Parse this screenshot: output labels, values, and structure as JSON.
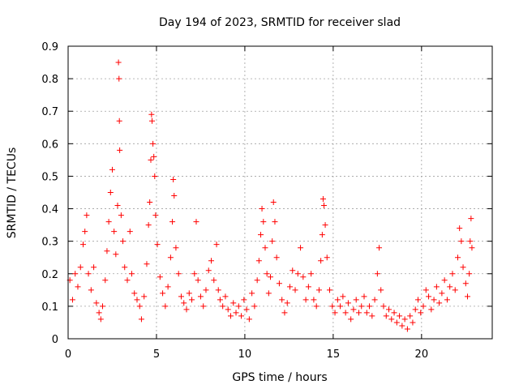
{
  "chart_data": {
    "type": "scatter",
    "title": "Day 194 of 2023, SRMTID for receiver slad",
    "xlabel": "GPS time / hours",
    "ylabel": "SRMTID / TECUs",
    "xlim": [
      0,
      24
    ],
    "ylim": [
      0,
      0.9
    ],
    "xticks": [
      0,
      5,
      10,
      15,
      20
    ],
    "xtick_labels": [
      "0",
      "5",
      "10",
      "15",
      "20"
    ],
    "yticks": [
      0,
      0.1,
      0.2,
      0.3,
      0.4,
      0.5,
      0.6,
      0.7,
      0.8,
      0.9
    ],
    "ytick_labels": [
      "0",
      "0.1",
      "0.2",
      "0.3",
      "0.4",
      "0.5",
      "0.6",
      "0.7",
      "0.8",
      "0.9"
    ],
    "grid": true,
    "marker": "+",
    "marker_color": "#ff0000",
    "series": [
      {
        "name": "SRMTID",
        "points": [
          [
            0.1,
            0.18
          ],
          [
            0.25,
            0.12
          ],
          [
            0.4,
            0.2
          ],
          [
            0.55,
            0.16
          ],
          [
            0.7,
            0.22
          ],
          [
            0.85,
            0.29
          ],
          [
            0.95,
            0.33
          ],
          [
            1.05,
            0.38
          ],
          [
            1.15,
            0.2
          ],
          [
            1.3,
            0.15
          ],
          [
            1.45,
            0.22
          ],
          [
            1.6,
            0.11
          ],
          [
            1.75,
            0.08
          ],
          [
            1.85,
            0.06
          ],
          [
            1.95,
            0.1
          ],
          [
            2.1,
            0.18
          ],
          [
            2.2,
            0.27
          ],
          [
            2.3,
            0.36
          ],
          [
            2.4,
            0.45
          ],
          [
            2.5,
            0.52
          ],
          [
            2.6,
            0.33
          ],
          [
            2.7,
            0.26
          ],
          [
            2.8,
            0.41
          ],
          [
            2.85,
            0.85
          ],
          [
            2.88,
            0.8
          ],
          [
            2.9,
            0.67
          ],
          [
            2.92,
            0.58
          ],
          [
            3.0,
            0.38
          ],
          [
            3.1,
            0.3
          ],
          [
            3.2,
            0.22
          ],
          [
            3.35,
            0.18
          ],
          [
            3.5,
            0.33
          ],
          [
            3.6,
            0.2
          ],
          [
            3.75,
            0.14
          ],
          [
            3.9,
            0.12
          ],
          [
            4.05,
            0.1
          ],
          [
            4.15,
            0.06
          ],
          [
            4.3,
            0.13
          ],
          [
            4.45,
            0.23
          ],
          [
            4.55,
            0.35
          ],
          [
            4.62,
            0.42
          ],
          [
            4.68,
            0.55
          ],
          [
            4.72,
            0.69
          ],
          [
            4.75,
            0.67
          ],
          [
            4.8,
            0.6
          ],
          [
            4.85,
            0.56
          ],
          [
            4.9,
            0.5
          ],
          [
            4.95,
            0.38
          ],
          [
            5.05,
            0.29
          ],
          [
            5.2,
            0.19
          ],
          [
            5.35,
            0.14
          ],
          [
            5.5,
            0.1
          ],
          [
            5.65,
            0.16
          ],
          [
            5.8,
            0.25
          ],
          [
            5.9,
            0.36
          ],
          [
            5.95,
            0.49
          ],
          [
            6.0,
            0.44
          ],
          [
            6.1,
            0.28
          ],
          [
            6.25,
            0.2
          ],
          [
            6.4,
            0.13
          ],
          [
            6.55,
            0.11
          ],
          [
            6.7,
            0.09
          ],
          [
            6.85,
            0.14
          ],
          [
            7.0,
            0.12
          ],
          [
            7.15,
            0.2
          ],
          [
            7.25,
            0.36
          ],
          [
            7.35,
            0.18
          ],
          [
            7.5,
            0.13
          ],
          [
            7.65,
            0.1
          ],
          [
            7.8,
            0.15
          ],
          [
            7.95,
            0.21
          ],
          [
            8.1,
            0.24
          ],
          [
            8.25,
            0.18
          ],
          [
            8.4,
            0.29
          ],
          [
            8.5,
            0.15
          ],
          [
            8.6,
            0.12
          ],
          [
            8.75,
            0.1
          ],
          [
            8.9,
            0.13
          ],
          [
            9.05,
            0.09
          ],
          [
            9.2,
            0.07
          ],
          [
            9.35,
            0.11
          ],
          [
            9.5,
            0.08
          ],
          [
            9.65,
            0.1
          ],
          [
            9.8,
            0.07
          ],
          [
            9.95,
            0.12
          ],
          [
            10.1,
            0.09
          ],
          [
            10.25,
            0.06
          ],
          [
            10.4,
            0.14
          ],
          [
            10.55,
            0.1
          ],
          [
            10.7,
            0.18
          ],
          [
            10.8,
            0.24
          ],
          [
            10.9,
            0.32
          ],
          [
            10.97,
            0.4
          ],
          [
            11.05,
            0.36
          ],
          [
            11.15,
            0.28
          ],
          [
            11.25,
            0.2
          ],
          [
            11.35,
            0.14
          ],
          [
            11.45,
            0.19
          ],
          [
            11.55,
            0.3
          ],
          [
            11.62,
            0.42
          ],
          [
            11.7,
            0.36
          ],
          [
            11.8,
            0.25
          ],
          [
            11.95,
            0.17
          ],
          [
            12.1,
            0.12
          ],
          [
            12.25,
            0.08
          ],
          [
            12.4,
            0.11
          ],
          [
            12.55,
            0.16
          ],
          [
            12.7,
            0.21
          ],
          [
            12.85,
            0.15
          ],
          [
            13.0,
            0.2
          ],
          [
            13.15,
            0.28
          ],
          [
            13.3,
            0.19
          ],
          [
            13.45,
            0.12
          ],
          [
            13.6,
            0.16
          ],
          [
            13.75,
            0.2
          ],
          [
            13.9,
            0.12
          ],
          [
            14.05,
            0.1
          ],
          [
            14.2,
            0.15
          ],
          [
            14.3,
            0.24
          ],
          [
            14.38,
            0.32
          ],
          [
            14.43,
            0.43
          ],
          [
            14.48,
            0.41
          ],
          [
            14.55,
            0.35
          ],
          [
            14.65,
            0.25
          ],
          [
            14.8,
            0.15
          ],
          [
            14.95,
            0.1
          ],
          [
            15.1,
            0.08
          ],
          [
            15.25,
            0.12
          ],
          [
            15.4,
            0.1
          ],
          [
            15.55,
            0.13
          ],
          [
            15.7,
            0.08
          ],
          [
            15.85,
            0.11
          ],
          [
            16.0,
            0.06
          ],
          [
            16.15,
            0.09
          ],
          [
            16.3,
            0.12
          ],
          [
            16.45,
            0.08
          ],
          [
            16.6,
            0.1
          ],
          [
            16.75,
            0.13
          ],
          [
            16.9,
            0.08
          ],
          [
            17.05,
            0.1
          ],
          [
            17.2,
            0.07
          ],
          [
            17.35,
            0.12
          ],
          [
            17.5,
            0.2
          ],
          [
            17.6,
            0.28
          ],
          [
            17.7,
            0.15
          ],
          [
            17.85,
            0.1
          ],
          [
            18.0,
            0.07
          ],
          [
            18.15,
            0.09
          ],
          [
            18.3,
            0.06
          ],
          [
            18.45,
            0.08
          ],
          [
            18.6,
            0.05
          ],
          [
            18.75,
            0.07
          ],
          [
            18.9,
            0.04
          ],
          [
            19.05,
            0.06
          ],
          [
            19.2,
            0.03
          ],
          [
            19.35,
            0.07
          ],
          [
            19.5,
            0.05
          ],
          [
            19.65,
            0.09
          ],
          [
            19.8,
            0.12
          ],
          [
            19.95,
            0.08
          ],
          [
            20.1,
            0.1
          ],
          [
            20.25,
            0.15
          ],
          [
            20.4,
            0.13
          ],
          [
            20.55,
            0.09
          ],
          [
            20.7,
            0.12
          ],
          [
            20.85,
            0.16
          ],
          [
            21.0,
            0.11
          ],
          [
            21.15,
            0.14
          ],
          [
            21.3,
            0.18
          ],
          [
            21.45,
            0.12
          ],
          [
            21.6,
            0.16
          ],
          [
            21.75,
            0.2
          ],
          [
            21.9,
            0.15
          ],
          [
            22.05,
            0.25
          ],
          [
            22.15,
            0.34
          ],
          [
            22.25,
            0.3
          ],
          [
            22.35,
            0.22
          ],
          [
            22.5,
            0.17
          ],
          [
            22.6,
            0.13
          ],
          [
            22.7,
            0.2
          ],
          [
            22.75,
            0.3
          ],
          [
            22.8,
            0.37
          ],
          [
            22.85,
            0.28
          ]
        ]
      }
    ]
  }
}
